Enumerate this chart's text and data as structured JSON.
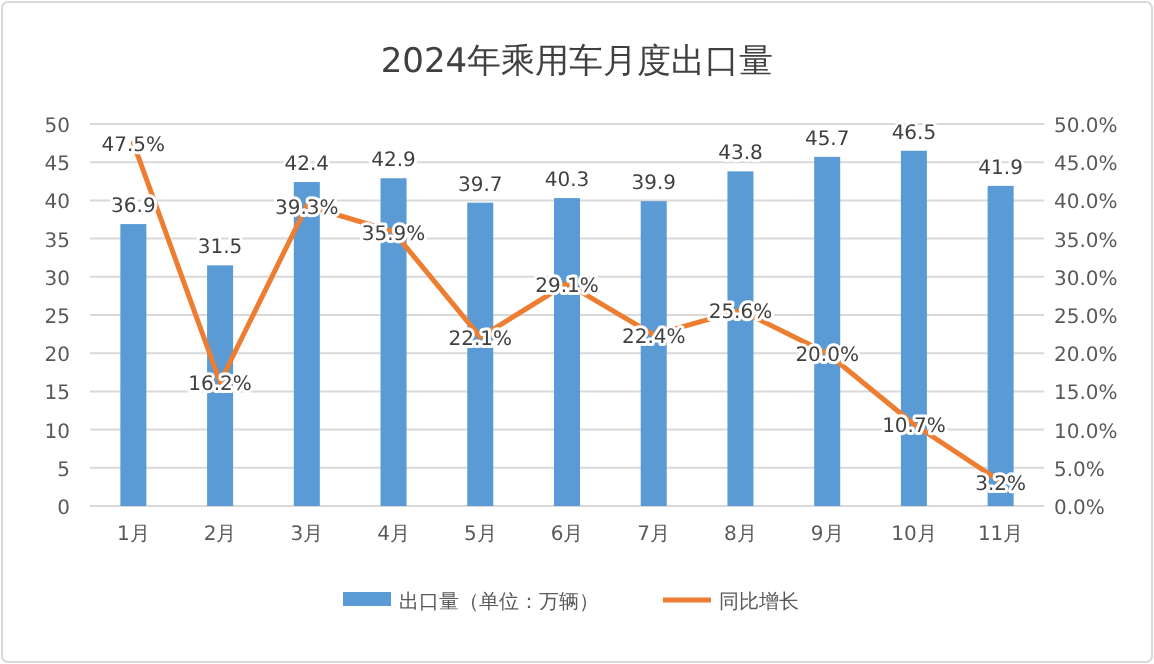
{
  "chart_data": {
    "type": "bar",
    "title": "2024年乘用车月度出口量",
    "categories": [
      "1月",
      "2月",
      "3月",
      "4月",
      "5月",
      "6月",
      "7月",
      "8月",
      "9月",
      "10月",
      "11月"
    ],
    "series": [
      {
        "name": "出口量（单位：万辆）",
        "color": "#5b9bd5",
        "values": [
          36.9,
          31.5,
          42.4,
          42.9,
          39.7,
          40.3,
          39.9,
          43.8,
          45.7,
          46.5,
          41.9
        ],
        "value_labels": [
          "36.9",
          "31.5",
          "42.4",
          "42.9",
          "39.7",
          "40.3",
          "39.9",
          "43.8",
          "45.7",
          "46.5",
          "41.9"
        ]
      },
      {
        "name": "同比增长",
        "type": "line",
        "axis": "y2",
        "color": "#ed7d31",
        "values": [
          47.5,
          16.2,
          39.3,
          35.9,
          22.1,
          29.1,
          22.4,
          25.6,
          20.0,
          10.7,
          3.2
        ],
        "value_labels": [
          "47.5%",
          "16.2%",
          "39.3%",
          "35.9%",
          "22.1%",
          "29.1%",
          "22.4%",
          "25.6%",
          "20.0%",
          "10.7%",
          "3.2%"
        ]
      }
    ],
    "ylim": [
      0,
      50
    ],
    "yticks": [
      0,
      5,
      10,
      15,
      20,
      25,
      30,
      35,
      40,
      45,
      50
    ],
    "y2lim": [
      0,
      50
    ],
    "y2ticks": [
      {
        "value": 0,
        "label": "0.0%"
      },
      {
        "value": 5,
        "label": "5.0%"
      },
      {
        "value": 10,
        "label": "10.0%"
      },
      {
        "value": 15,
        "label": "15.0%"
      },
      {
        "value": 20,
        "label": "20.0%"
      },
      {
        "value": 25,
        "label": "25.0%"
      },
      {
        "value": 30,
        "label": "30.0%"
      },
      {
        "value": 35,
        "label": "35.0%"
      },
      {
        "value": 40,
        "label": "40.0%"
      },
      {
        "value": 45,
        "label": "45.0%"
      },
      {
        "value": 50,
        "label": "50.0%"
      }
    ],
    "grid": "y",
    "legend": "bottom",
    "marker": "none",
    "line_style": "solid"
  }
}
